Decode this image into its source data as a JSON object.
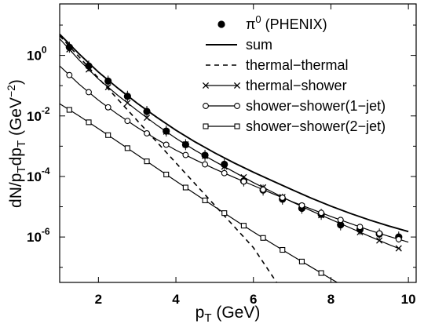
{
  "chart_data": {
    "type": "line",
    "xlabel": {
      "main": "p",
      "sub": "T",
      "rest": " (GeV)"
    },
    "ylabel": {
      "text": "dN/p",
      "sub1": "T",
      "mid": "dp",
      "sub2": "T",
      "units": " (GeV",
      "sup": "−2",
      "close": ")"
    },
    "xlim": [
      1.0,
      10.2
    ],
    "ylim_log10": [
      -7.5,
      1.7
    ],
    "yscale": "log",
    "xticks": [
      "2",
      "4",
      "6",
      "8",
      "10"
    ],
    "xtick_values": [
      2,
      4,
      6,
      8,
      10
    ],
    "yticks": [
      {
        "exp": 0,
        "base": "10",
        "sup": "0"
      },
      {
        "exp": -2,
        "base": "10",
        "sup": "-2"
      },
      {
        "exp": -4,
        "base": "10",
        "sup": "-4"
      },
      {
        "exp": -6,
        "base": "10",
        "sup": "-6"
      }
    ],
    "legend_position": "top-right",
    "series": [
      {
        "name": "π0 (PHENIX)",
        "name_base": "π",
        "name_sup": "0",
        "name_rest": " (PHENIX)",
        "style": "points",
        "x": [
          1.25,
          1.75,
          2.25,
          2.75,
          3.25,
          3.75,
          4.25,
          4.75,
          5.25,
          5.75,
          6.25,
          6.75,
          7.25,
          7.75,
          8.25,
          8.75,
          9.25,
          9.75
        ],
        "log10_y": [
          0.27,
          -0.35,
          -0.85,
          -1.35,
          -1.85,
          -2.5,
          -2.95,
          -3.3,
          -3.6,
          -4.15,
          -4.45,
          -4.75,
          -5.05,
          -5.25,
          -5.6,
          -5.75,
          -5.9,
          -6.0
        ]
      },
      {
        "name": "sum",
        "style": "solid",
        "x": [
          1.0,
          1.5,
          2.0,
          2.5,
          3.0,
          3.5,
          4.0,
          4.5,
          5.0,
          5.5,
          6.0,
          6.5,
          7.0,
          7.5,
          8.0,
          8.5,
          9.0,
          9.5,
          10.0
        ],
        "log10_y": [
          0.7,
          0.05,
          -0.55,
          -1.08,
          -1.58,
          -2.04,
          -2.47,
          -2.86,
          -3.22,
          -3.55,
          -3.86,
          -4.15,
          -4.44,
          -4.72,
          -4.98,
          -5.22,
          -5.44,
          -5.64,
          -5.82
        ]
      },
      {
        "name": "thermal−thermal",
        "style": "dashed",
        "x": [
          1.0,
          1.5,
          2.0,
          2.5,
          3.0,
          3.5,
          4.0,
          4.5,
          5.0,
          5.5,
          6.0,
          6.6
        ],
        "log10_y": [
          0.65,
          -0.05,
          -0.75,
          -1.45,
          -2.15,
          -2.85,
          -3.55,
          -4.25,
          -4.95,
          -5.65,
          -6.35,
          -7.5
        ]
      },
      {
        "name": "thermal−shower",
        "style": "line-x",
        "x": [
          1.0,
          1.5,
          2.0,
          2.5,
          3.0,
          3.5,
          4.0,
          4.5,
          5.0,
          5.5,
          6.0,
          6.5,
          7.0,
          7.5,
          8.0,
          8.5,
          9.0,
          9.5,
          9.8
        ],
        "log10_y": [
          0.55,
          -0.15,
          -0.78,
          -1.32,
          -1.82,
          -2.3,
          -2.74,
          -3.14,
          -3.5,
          -3.85,
          -4.2,
          -4.52,
          -4.84,
          -5.14,
          -5.42,
          -5.7,
          -5.98,
          -6.25,
          -6.4
        ],
        "marker_x": [
          1.25,
          1.75,
          2.25,
          2.75,
          3.25,
          3.75,
          4.25,
          4.75,
          5.25,
          5.75,
          6.25,
          6.75,
          7.25,
          7.75,
          8.25,
          8.75,
          9.25,
          9.75
        ]
      },
      {
        "name": "shower−shower(1−jet)",
        "style": "line-o",
        "x": [
          1.0,
          1.5,
          2.0,
          2.5,
          3.0,
          3.5,
          4.0,
          4.5,
          5.0,
          5.5,
          6.0,
          6.5,
          7.0,
          7.5,
          8.0,
          8.5,
          9.0,
          9.5,
          10.0
        ],
        "log10_y": [
          -0.35,
          -0.95,
          -1.48,
          -1.95,
          -2.38,
          -2.77,
          -3.13,
          -3.45,
          -3.75,
          -4.03,
          -4.3,
          -4.57,
          -4.83,
          -5.08,
          -5.32,
          -5.55,
          -5.78,
          -5.98,
          -6.17
        ],
        "marker_x": [
          1.25,
          1.75,
          2.25,
          2.75,
          3.25,
          3.75,
          4.25,
          4.75,
          5.25,
          5.75,
          6.25,
          6.75,
          7.25,
          7.75,
          8.25,
          8.75,
          9.25,
          9.75
        ]
      },
      {
        "name": "shower−shower(2−jet)",
        "style": "line-sq",
        "x": [
          1.0,
          1.5,
          2.0,
          2.5,
          3.0,
          3.5,
          4.0,
          4.5,
          5.0,
          5.5,
          6.0,
          6.5,
          7.0,
          7.5,
          8.0,
          8.5,
          9.0,
          9.5,
          10.0
        ],
        "log10_y": [
          -1.6,
          -2.0,
          -2.42,
          -2.85,
          -3.28,
          -3.72,
          -4.15,
          -4.58,
          -5.0,
          -5.42,
          -5.83,
          -6.23,
          -6.62,
          -7.0,
          -7.38,
          -7.75,
          -8.1,
          -8.45,
          -8.8
        ],
        "marker_x": [
          1.25,
          1.75,
          2.25,
          2.75,
          3.25,
          3.75,
          4.25,
          4.75,
          5.25,
          5.75,
          6.25,
          6.75,
          7.25,
          7.75
        ]
      }
    ]
  }
}
